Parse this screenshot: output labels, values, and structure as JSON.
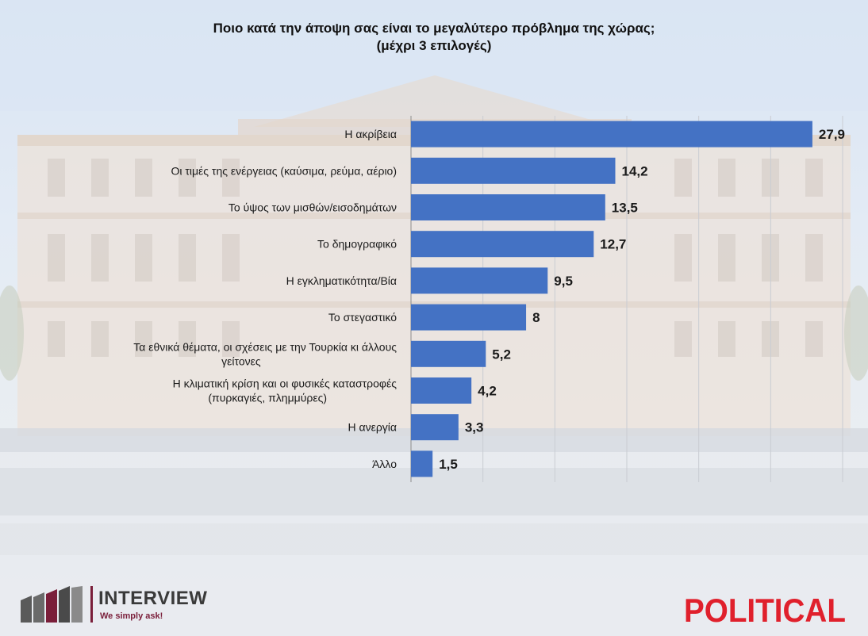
{
  "title_line1": "Ποιο κατά την άποψη σας είναι το μεγαλύτερο πρόβλημα της χώρας;",
  "title_line2": "(μέχρι 3 επιλογές)",
  "brand": {
    "interview_name": "INTERVIEW",
    "interview_tagline": "We simply ask!",
    "political_name": "POLITICAL"
  },
  "colors": {
    "bar": "#4472c4",
    "political": "#e0202c",
    "interview_accent": "#7a1e3a"
  },
  "chart_data": {
    "type": "bar",
    "orientation": "horizontal",
    "title": "Ποιο κατά την άποψη σας είναι το μεγαλύτερο πρόβλημα της χώρας; (μέχρι 3 επιλογές)",
    "categories": [
      [
        "Η ακρίβεια"
      ],
      [
        "Οι τιμές της ενέργειας (καύσιμα, ρεύμα, αέριο)"
      ],
      [
        "Το ύψος των μισθών/εισοδημάτων"
      ],
      [
        "Το δημογραφικό"
      ],
      [
        "Η εγκληματικότητα/Βία"
      ],
      [
        "Το στεγαστικό"
      ],
      [
        "Τα εθνικά θέματα, οι σχέσεις με την Τουρκία κι άλλους",
        "γείτονες"
      ],
      [
        "Η κλιματική κρίση και οι φυσικές καταστροφές",
        "(πυρκαγιές, πλημμύρες)"
      ],
      [
        "Η ανεργία"
      ],
      [
        "Άλλο"
      ]
    ],
    "values": [
      27.9,
      14.2,
      13.5,
      12.7,
      9.5,
      8,
      5.2,
      4.2,
      3.3,
      1.5
    ],
    "value_labels": [
      "27,9",
      "14,2",
      "13,5",
      "12,7",
      "9,5",
      "8",
      "5,2",
      "4,2",
      "3,3",
      "1,5"
    ],
    "xlim": [
      0,
      30
    ],
    "grid": true
  }
}
